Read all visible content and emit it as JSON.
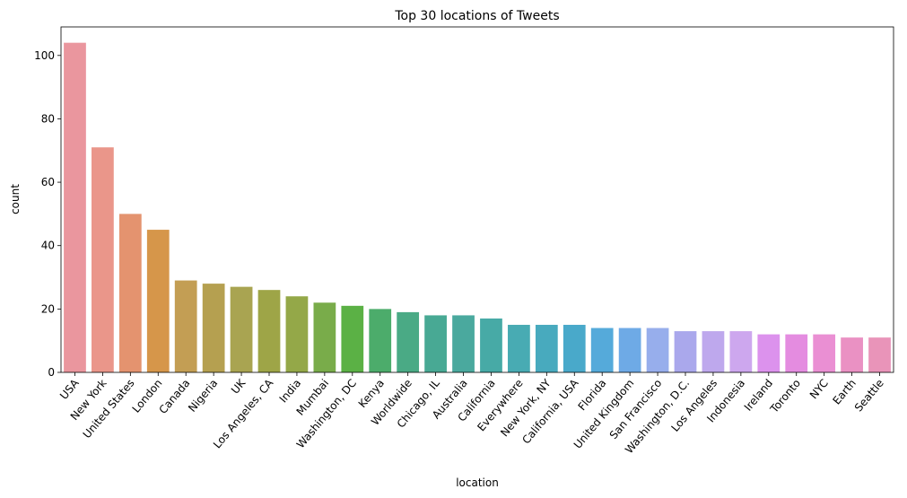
{
  "chart_data": {
    "type": "bar",
    "title": "Top 30 locations of Tweets",
    "xlabel": "location",
    "ylabel": "count",
    "ylim": [
      0,
      109
    ],
    "yticks": [
      0,
      20,
      40,
      60,
      80,
      100
    ],
    "grid": false,
    "categories": [
      "USA",
      "New York",
      "United States",
      "London",
      "Canada",
      "Nigeria",
      "UK",
      "Los Angeles, CA",
      "India",
      "Mumbai",
      "Washington, DC",
      "Kenya",
      "Worldwide",
      "Chicago, IL",
      "Australia",
      "California",
      "Everywhere",
      "New York, NY",
      "California, USA",
      "Florida",
      "United Kingdom",
      "San Francisco",
      "Washington, D.C.",
      "Los Angeles",
      "Indonesia",
      "Ireland",
      "Toronto",
      "NYC",
      "Earth",
      "Seattle"
    ],
    "values": [
      104,
      71,
      50,
      45,
      29,
      28,
      27,
      26,
      24,
      22,
      21,
      20,
      19,
      18,
      18,
      17,
      15,
      15,
      15,
      14,
      14,
      14,
      13,
      13,
      13,
      12,
      12,
      12,
      11,
      11
    ],
    "colors": [
      "#ea969e",
      "#ea968a",
      "#e4936f",
      "#d6964a",
      "#c39e54",
      "#b5a050",
      "#a9a451",
      "#9ea547",
      "#94a848",
      "#79ac4a",
      "#5bb145",
      "#4cac6b",
      "#4aaa85",
      "#48a994",
      "#4aa99e",
      "#47aaa6",
      "#48abb3",
      "#48aabe",
      "#49a9ca",
      "#55aada",
      "#6eaae6",
      "#97aeec",
      "#aaa8ec",
      "#bea8ed",
      "#cda7ee",
      "#dc92ed",
      "#e48ce0",
      "#ea8fd3",
      "#ea91c3",
      "#e994b9"
    ]
  }
}
